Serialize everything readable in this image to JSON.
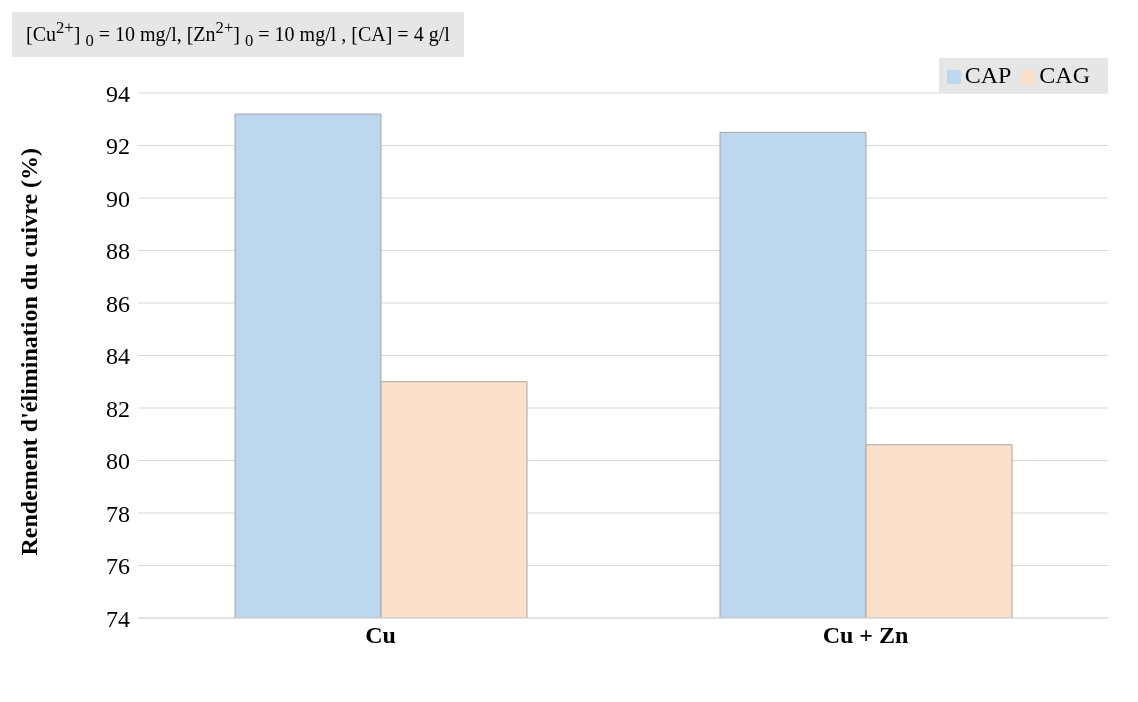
{
  "chart_data": {
    "type": "bar",
    "categories": [
      "Cu",
      "Cu + Zn"
    ],
    "series": [
      {
        "name": "CAP",
        "color": "#bdd7ee",
        "values": [
          93.2,
          92.5
        ]
      },
      {
        "name": "CAG",
        "color": "#fbe0cc",
        "values": [
          83,
          80.6
        ]
      }
    ],
    "ylabel": "Rendement d'élimination du cuivre (%)",
    "annotations": [
      "[Cu$^{2+}$] $_{0}$ = 10 mg/l, [Zn$^{2+}$] $_{0}$ = 10 mg/l , [CA] = 4 g/l"
    ],
    "ylim": [
      74,
      94
    ],
    "yticks": [
      74,
      76,
      78,
      80,
      82,
      84,
      86,
      88,
      90,
      92,
      94
    ],
    "grid": "y",
    "legend": "top right"
  }
}
